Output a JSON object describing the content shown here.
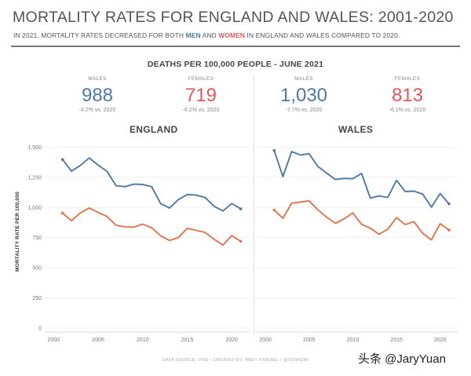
{
  "header": {
    "title": "MORTALITY RATES FOR ENGLAND AND WALES: 2001-2020",
    "subtitle_pre": "IN 2021, MORTALITY RATES DECREASED FOR BOTH ",
    "subtitle_men": "MEN",
    "subtitle_and": " AND ",
    "subtitle_women": "WOMEN",
    "subtitle_post": " IN ENGLAND AND WALES COMPARED TO 2020."
  },
  "section_title": "DEATHS PER 100,000 PEOPLE - JUNE 2021",
  "kpis": {
    "england_males": {
      "label": "MALES",
      "value": "988",
      "change": "-4.2% vs. 2020"
    },
    "england_females": {
      "label": "FEMALES",
      "value": "719",
      "change": "-6.2% vs. 2020"
    },
    "wales_males": {
      "label": "MALES",
      "value": "1,030",
      "change": "-7.7% vs. 2020"
    },
    "wales_females": {
      "label": "FEMALES",
      "value": "813",
      "change": "-6.1% vs. 2020"
    }
  },
  "footer": "DATA SOURCE: ONS  •  CREATED BY: ANDY KRIEBEL | @VIZWIZBI",
  "watermark": "头条 @JaryYuan",
  "colors": {
    "males": "#4e79a7",
    "females": "#e1734f",
    "grid": "#e6e6e6",
    "axis": "#cfcfcf"
  },
  "chart_data": [
    {
      "type": "line",
      "title": "ENGLAND",
      "ylabel": "MORTALITY RATE PER 100,000",
      "xlim": [
        1999,
        2022
      ],
      "ylim": [
        0,
        1600
      ],
      "xticks": [
        2000,
        2005,
        2010,
        2015,
        2020
      ],
      "yticks": [
        0,
        250,
        500,
        750,
        1000,
        1250,
        1500
      ],
      "ytick_labels": [
        "0",
        "250",
        "500",
        "750",
        "1,000",
        "1,250",
        "1,500"
      ],
      "x": [
        2001,
        2002,
        2003,
        2004,
        2005,
        2006,
        2007,
        2008,
        2009,
        2010,
        2011,
        2012,
        2013,
        2014,
        2015,
        2016,
        2017,
        2018,
        2019,
        2020,
        2021
      ],
      "series": [
        {
          "name": "MALES",
          "values": [
            1397,
            1300,
            1348,
            1410,
            1350,
            1298,
            1180,
            1172,
            1193,
            1190,
            1172,
            1033,
            995,
            1065,
            1107,
            1102,
            1082,
            1010,
            971,
            1032,
            988
          ]
        },
        {
          "name": "FEMALES",
          "values": [
            953,
            890,
            955,
            995,
            958,
            925,
            852,
            840,
            837,
            862,
            832,
            765,
            726,
            750,
            827,
            810,
            793,
            737,
            688,
            767,
            719
          ]
        }
      ]
    },
    {
      "type": "line",
      "title": "WALES",
      "xlim": [
        1999,
        2022
      ],
      "ylim": [
        0,
        1600
      ],
      "xticks": [
        2000,
        2005,
        2010,
        2015,
        2020
      ],
      "x": [
        2001,
        2002,
        2003,
        2004,
        2005,
        2006,
        2007,
        2008,
        2009,
        2010,
        2011,
        2012,
        2013,
        2014,
        2015,
        2016,
        2017,
        2018,
        2019,
        2020,
        2021
      ],
      "series": [
        {
          "name": "MALES",
          "values": [
            1472,
            1255,
            1462,
            1435,
            1445,
            1340,
            1285,
            1232,
            1240,
            1238,
            1282,
            1078,
            1095,
            1083,
            1225,
            1132,
            1135,
            1110,
            1003,
            1115,
            1030
          ]
        },
        {
          "name": "FEMALES",
          "values": [
            978,
            910,
            1035,
            1045,
            1055,
            980,
            920,
            868,
            905,
            955,
            860,
            828,
            778,
            820,
            915,
            858,
            882,
            785,
            732,
            865,
            813
          ]
        }
      ]
    }
  ]
}
